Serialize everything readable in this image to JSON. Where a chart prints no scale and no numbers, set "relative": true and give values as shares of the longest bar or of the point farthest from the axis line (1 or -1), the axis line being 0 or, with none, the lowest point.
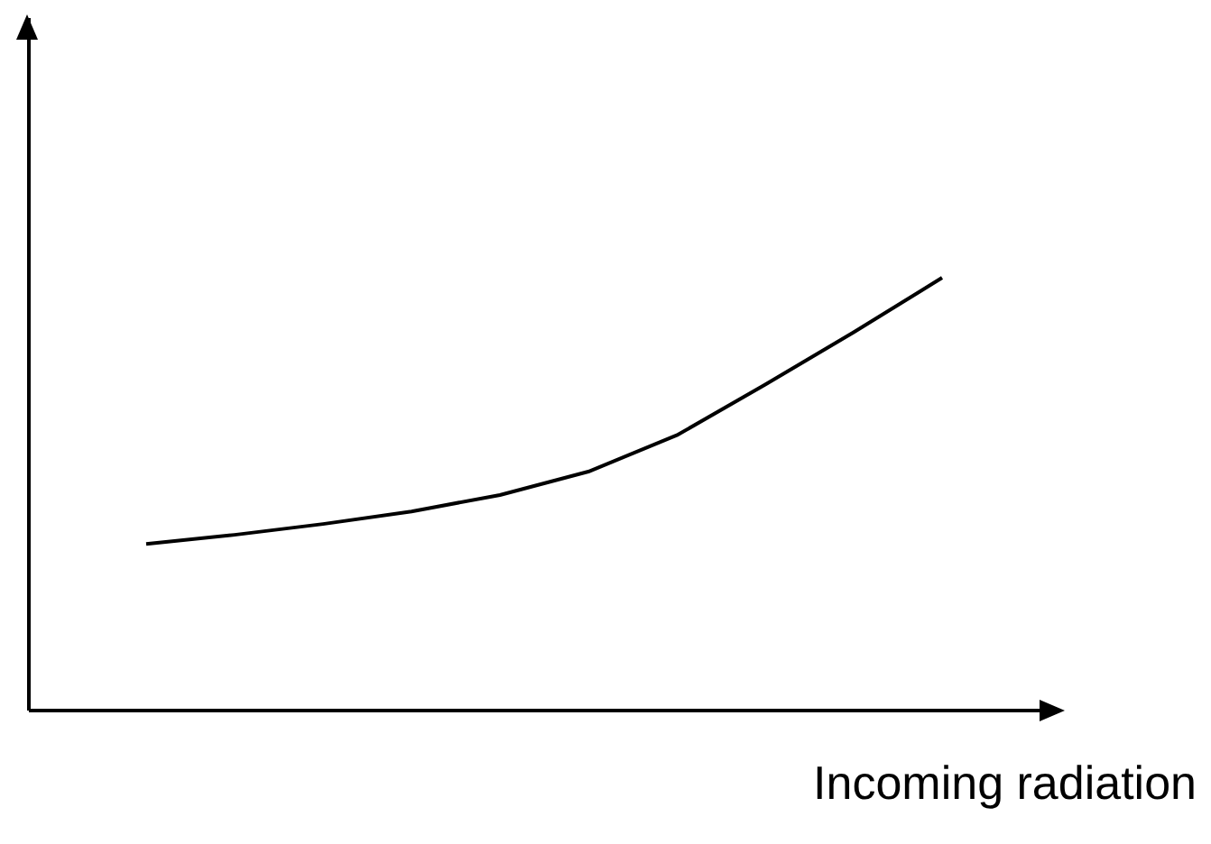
{
  "chart_data": {
    "type": "line",
    "xlabel": "Incoming radiation",
    "relative": true,
    "categories": [
      null,
      null,
      null,
      null,
      null,
      null,
      null,
      null,
      null,
      null
    ],
    "series": [
      {
        "color": "#000000",
        "values": [
          0.385,
          0.406,
          0.431,
          0.46,
          0.498,
          0.552,
          0.636,
          0.753,
          0.874,
          1
        ]
      }
    ],
    "marker": "none",
    "line_style": "solid"
  }
}
